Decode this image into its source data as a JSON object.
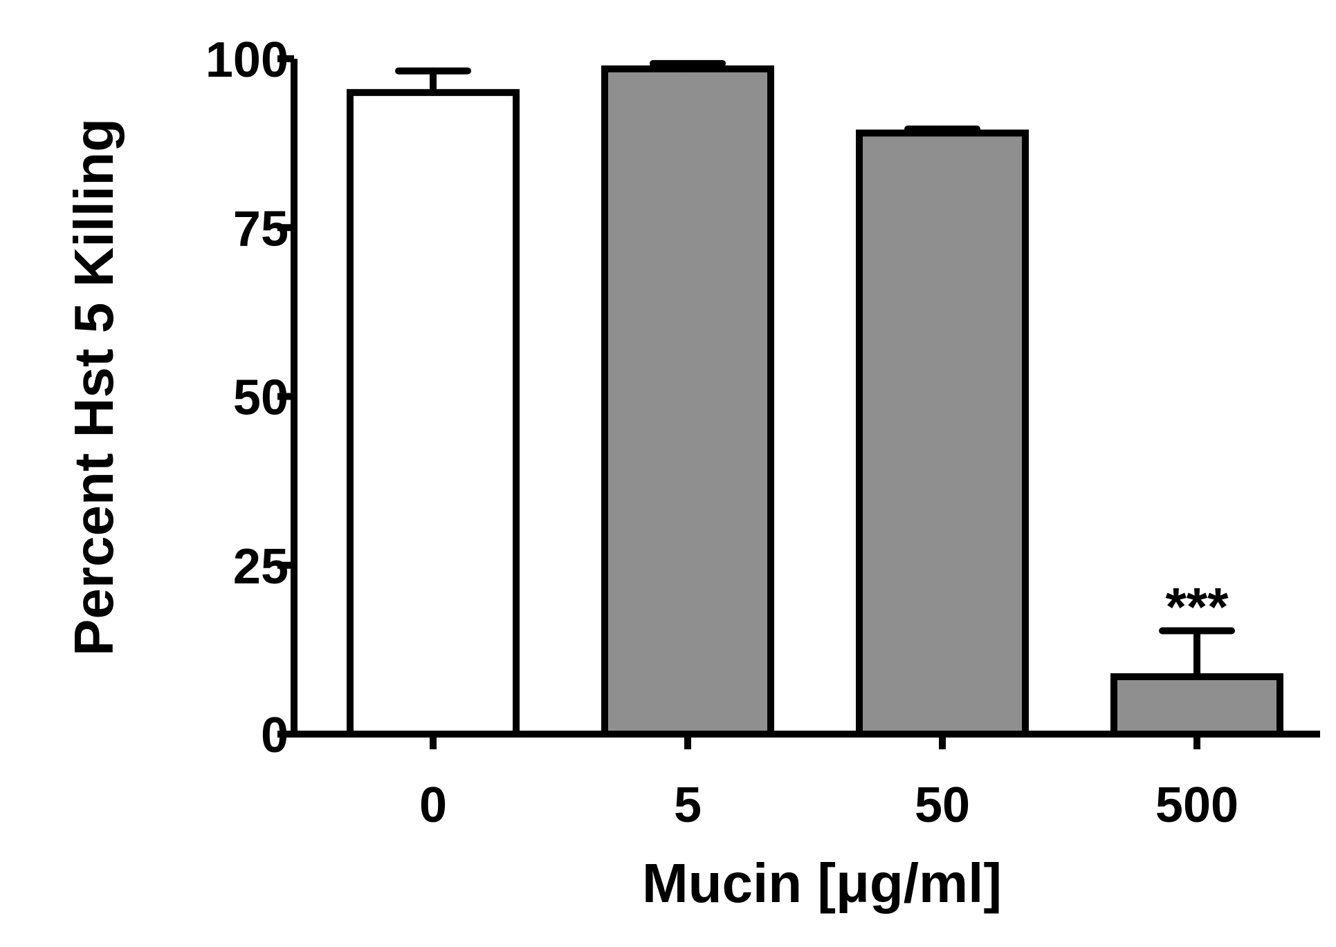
{
  "chart_data": {
    "type": "bar",
    "title": "",
    "xlabel": "Mucin [μg/ml]",
    "ylabel": "Percent Hst 5 Killing",
    "categories": [
      "0",
      "5",
      "50",
      "500"
    ],
    "values": [
      95,
      98.5,
      89,
      8.5
    ],
    "errors": [
      3.2,
      0.8,
      0.6,
      6.8
    ],
    "bar_colors": [
      "#ffffff",
      "#8f8f8f",
      "#8f8f8f",
      "#8f8f8f"
    ],
    "ylim": [
      0,
      100
    ],
    "yticks": [
      0,
      25,
      50,
      75,
      100
    ],
    "yticklabels": [
      "0",
      "25",
      "50",
      "75",
      "100"
    ],
    "annotations": [
      {
        "category": "500",
        "text": "***"
      }
    ],
    "grid": false,
    "legend": "none"
  }
}
